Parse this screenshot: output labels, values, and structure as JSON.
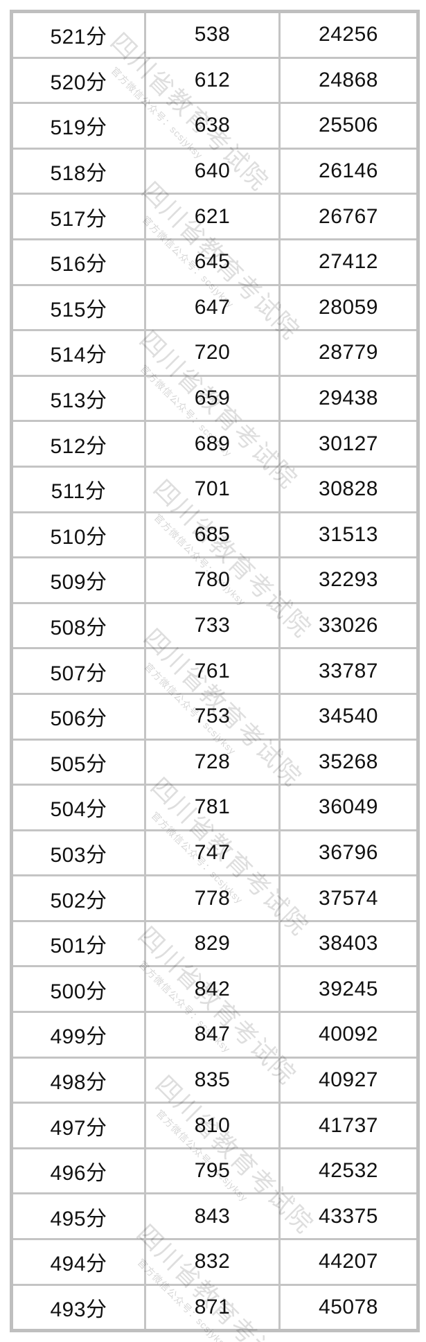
{
  "watermark": {
    "big_text": "四川省教育考试院",
    "small_text": "官方微信公众号：scsjyksy"
  },
  "table": {
    "columns": [
      "score",
      "count",
      "cumulative"
    ],
    "rows": [
      {
        "score": "521分",
        "count": "538",
        "cumulative": "24256"
      },
      {
        "score": "520分",
        "count": "612",
        "cumulative": "24868"
      },
      {
        "score": "519分",
        "count": "638",
        "cumulative": "25506"
      },
      {
        "score": "518分",
        "count": "640",
        "cumulative": "26146"
      },
      {
        "score": "517分",
        "count": "621",
        "cumulative": "26767"
      },
      {
        "score": "516分",
        "count": "645",
        "cumulative": "27412"
      },
      {
        "score": "515分",
        "count": "647",
        "cumulative": "28059"
      },
      {
        "score": "514分",
        "count": "720",
        "cumulative": "28779"
      },
      {
        "score": "513分",
        "count": "659",
        "cumulative": "29438"
      },
      {
        "score": "512分",
        "count": "689",
        "cumulative": "30127"
      },
      {
        "score": "511分",
        "count": "701",
        "cumulative": "30828"
      },
      {
        "score": "510分",
        "count": "685",
        "cumulative": "31513"
      },
      {
        "score": "509分",
        "count": "780",
        "cumulative": "32293"
      },
      {
        "score": "508分",
        "count": "733",
        "cumulative": "33026"
      },
      {
        "score": "507分",
        "count": "761",
        "cumulative": "33787"
      },
      {
        "score": "506分",
        "count": "753",
        "cumulative": "34540"
      },
      {
        "score": "505分",
        "count": "728",
        "cumulative": "35268"
      },
      {
        "score": "504分",
        "count": "781",
        "cumulative": "36049"
      },
      {
        "score": "503分",
        "count": "747",
        "cumulative": "36796"
      },
      {
        "score": "502分",
        "count": "778",
        "cumulative": "37574"
      },
      {
        "score": "501分",
        "count": "829",
        "cumulative": "38403"
      },
      {
        "score": "500分",
        "count": "842",
        "cumulative": "39245"
      },
      {
        "score": "499分",
        "count": "847",
        "cumulative": "40092"
      },
      {
        "score": "498分",
        "count": "835",
        "cumulative": "40927"
      },
      {
        "score": "497分",
        "count": "810",
        "cumulative": "41737"
      },
      {
        "score": "496分",
        "count": "795",
        "cumulative": "42532"
      },
      {
        "score": "495分",
        "count": "843",
        "cumulative": "43375"
      },
      {
        "score": "494分",
        "count": "832",
        "cumulative": "44207"
      },
      {
        "score": "493分",
        "count": "871",
        "cumulative": "45078"
      }
    ]
  },
  "colors": {
    "outer_border": "#bfbfbf",
    "inner_border": "#c4c4c4",
    "text": "#111111",
    "background": "#ffffff"
  }
}
